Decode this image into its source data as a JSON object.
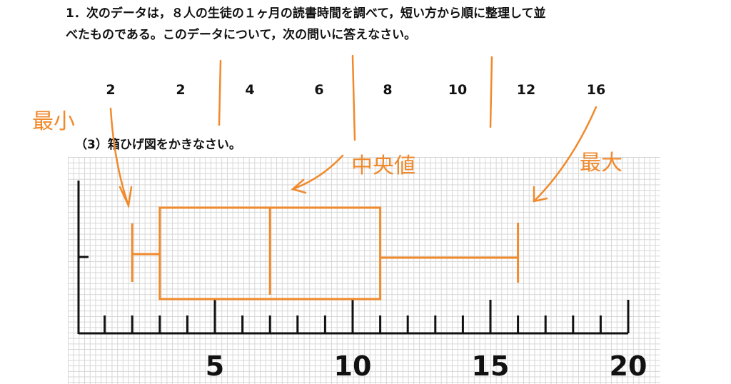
{
  "problem": {
    "line1": "1．次のデータは，８人の生徒の１ヶ月の読書時間を調べて，短い方から順に整理して並",
    "line2": "べたものである。このデータについて，次の問いに答えなさい。",
    "data_list": [
      2,
      2,
      4,
      6,
      8,
      10,
      12,
      16
    ],
    "sub_question": "（3）箱ひげ図をかきなさい。"
  },
  "chart_data": {
    "type": "box",
    "color": "#f08a2c",
    "min": 2,
    "q1": 3,
    "median": 7,
    "q3": 11,
    "max": 16,
    "xlim": [
      0,
      20
    ],
    "xticks": [
      5,
      10,
      15,
      20
    ],
    "minor_xticks": [
      1,
      2,
      3,
      4,
      6,
      7,
      8,
      9,
      11,
      12,
      13,
      14,
      16,
      17,
      18,
      19
    ],
    "annotations": [
      "最小",
      "中央値",
      "最大"
    ]
  }
}
